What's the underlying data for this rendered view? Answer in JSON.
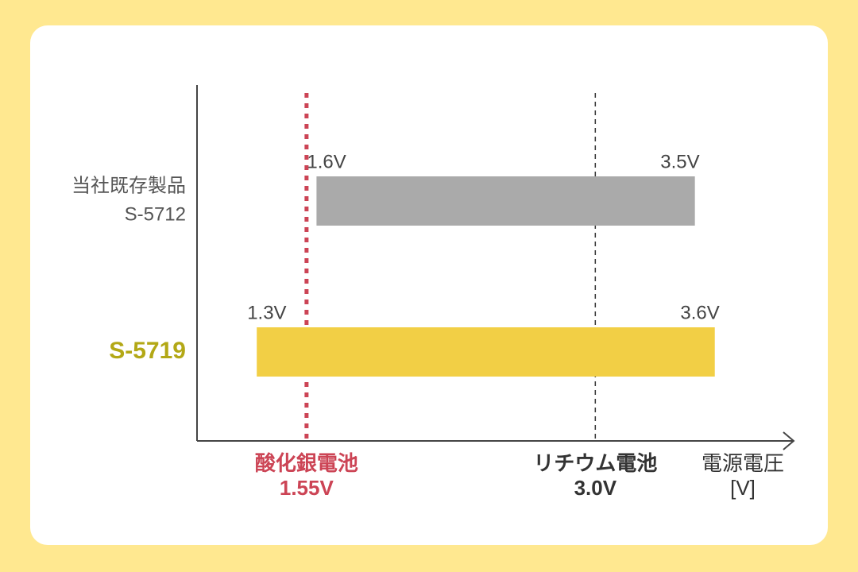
{
  "chart_data": {
    "type": "range-bar",
    "categories": [
      [
        "当社既存製品",
        "S-5712"
      ],
      [
        "S-5719"
      ]
    ],
    "category_colors": [
      "#555555",
      "#b3a816"
    ],
    "low": [
      1.6,
      1.3
    ],
    "high": [
      3.5,
      3.6
    ],
    "low_labels": [
      "1.6V",
      "1.3V"
    ],
    "high_labels": [
      "3.5V",
      "3.6V"
    ],
    "colors": [
      "#aaaaaa",
      "#f2cf45"
    ],
    "xlim": [
      1,
      4
    ],
    "reference_lines": [
      {
        "value": 1.55,
        "label": [
          "酸化銀電池",
          "1.55V"
        ],
        "color": "#cc4455",
        "style": "dotted"
      },
      {
        "value": 3.0,
        "label": [
          "リチウム電池",
          "3.0V"
        ],
        "color": "#333333",
        "style": "dashed"
      }
    ],
    "x_label": [
      "電源電圧",
      "[V]"
    ]
  }
}
